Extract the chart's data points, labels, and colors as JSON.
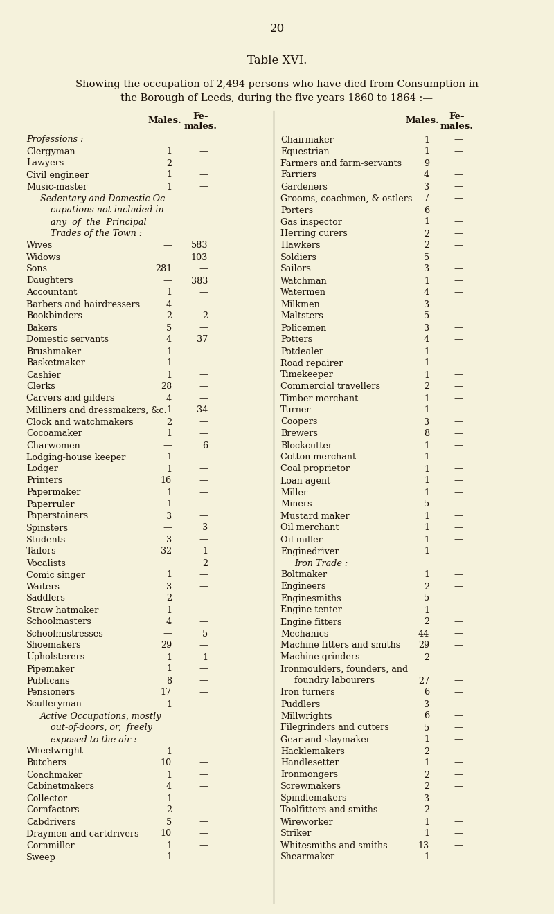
{
  "page_number": "20",
  "title": "Table XVI.",
  "subtitle_line1": "Showing the occupation of 2,494 persons who have died from Consumption in",
  "subtitle_line2": "the Borough of Leeds, during the five years 1860 to 1864 :—",
  "bg_color": "#f5f2dc",
  "text_color": "#1a1008",
  "left_column": [
    {
      "label": "Professions :",
      "males": "",
      "females": "",
      "style": "italic",
      "dots": false
    },
    {
      "label": "Clergyman",
      "males": "1",
      "females": "—",
      "style": "normal",
      "dots": true
    },
    {
      "label": "Lawyers",
      "males": "2",
      "females": "—",
      "style": "normal",
      "dots": true
    },
    {
      "label": "Civil engineer",
      "males": "1",
      "females": "—",
      "style": "normal",
      "dots": true
    },
    {
      "label": "Music-master",
      "males": "1",
      "females": "—",
      "style": "normal",
      "dots": true
    },
    {
      "label": "Sedentary and Domestic Oc-",
      "males": "",
      "females": "",
      "style": "italic",
      "dots": false,
      "indent": 20
    },
    {
      "label": "cupations not included in",
      "males": "",
      "females": "",
      "style": "italic",
      "dots": false,
      "indent": 35
    },
    {
      "label": "any  of  the  Principal",
      "males": "",
      "females": "",
      "style": "italic",
      "dots": false,
      "indent": 35
    },
    {
      "label": "Trades of the Town :",
      "males": "",
      "females": "",
      "style": "italic",
      "dots": false,
      "indent": 35
    },
    {
      "label": "Wives",
      "males": "—",
      "females": "583",
      "style": "normal",
      "dots": true
    },
    {
      "label": "Widows",
      "males": "—",
      "females": "103",
      "style": "normal",
      "dots": true
    },
    {
      "label": "Sons",
      "males": "281",
      "females": "—",
      "style": "normal",
      "dots": true
    },
    {
      "label": "Daughters",
      "males": "—",
      "females": "383",
      "style": "normal",
      "dots": true
    },
    {
      "label": "Accountant",
      "males": "1",
      "females": "—",
      "style": "normal",
      "dots": true
    },
    {
      "label": "Barbers and hairdressers",
      "males": "4",
      "females": "—",
      "style": "normal",
      "dots": false
    },
    {
      "label": "Bookbinders",
      "males": "2",
      "females": "2",
      "style": "normal",
      "dots": true
    },
    {
      "label": "Bakers",
      "males": "5",
      "females": "—",
      "style": "normal",
      "dots": true
    },
    {
      "label": "Domestic servants",
      "males": "4",
      "females": "37",
      "style": "normal",
      "dots": true
    },
    {
      "label": "Brushmaker",
      "males": "1",
      "females": "—",
      "style": "normal",
      "dots": true
    },
    {
      "label": "Basketmaker",
      "males": "1",
      "females": "—",
      "style": "normal",
      "dots": true
    },
    {
      "label": "Cashier",
      "males": "1",
      "females": "—",
      "style": "normal",
      "dots": true
    },
    {
      "label": "Clerks",
      "males": "28",
      "females": "—",
      "style": "normal",
      "dots": true
    },
    {
      "label": "Carvers and gilders",
      "males": "4",
      "females": "—",
      "style": "normal",
      "dots": true
    },
    {
      "label": "Milliners and dressmakers, &c.",
      "males": "1",
      "females": "34",
      "style": "normal",
      "dots": false
    },
    {
      "label": "Clock and watchmakers",
      "males": "2",
      "females": "—",
      "style": "normal",
      "dots": true
    },
    {
      "label": "Cocoamaker",
      "males": "1",
      "females": "—",
      "style": "normal",
      "dots": true
    },
    {
      "label": "Charwomen",
      "males": "—",
      "females": "6",
      "style": "normal",
      "dots": true
    },
    {
      "label": "Lodging-house keeper",
      "males": "1",
      "females": "—",
      "style": "normal",
      "dots": true
    },
    {
      "label": "Lodger",
      "males": "1",
      "females": "—",
      "style": "normal",
      "dots": true
    },
    {
      "label": "Printers",
      "males": "16",
      "females": "—",
      "style": "normal",
      "dots": true
    },
    {
      "label": "Papermaker",
      "males": "1",
      "females": "—",
      "style": "normal",
      "dots": true
    },
    {
      "label": "Paperruler",
      "males": "1",
      "females": "—",
      "style": "normal",
      "dots": true
    },
    {
      "label": "Paperstainers",
      "males": "3",
      "females": "—",
      "style": "normal",
      "dots": true
    },
    {
      "label": "Spinsters",
      "males": "—",
      "females": "3",
      "style": "normal",
      "dots": true
    },
    {
      "label": "Students",
      "males": "3",
      "females": "—",
      "style": "normal",
      "dots": true
    },
    {
      "label": "Tailors",
      "males": "32",
      "females": "1",
      "style": "normal",
      "dots": true
    },
    {
      "label": "Vocalists",
      "males": "—",
      "females": "2",
      "style": "normal",
      "dots": true
    },
    {
      "label": "Comic singer",
      "males": "1",
      "females": "—",
      "style": "normal",
      "dots": true
    },
    {
      "label": "Waiters",
      "males": "3",
      "females": "—",
      "style": "normal",
      "dots": true
    },
    {
      "label": "Saddlers",
      "males": "2",
      "females": "—",
      "style": "normal",
      "dots": true
    },
    {
      "label": "Straw hatmaker",
      "males": "1",
      "females": "—",
      "style": "normal",
      "dots": true
    },
    {
      "label": "Schoolmasters",
      "males": "4",
      "females": "—",
      "style": "normal",
      "dots": true
    },
    {
      "label": "Schoolmistresses",
      "males": "—",
      "females": "5",
      "style": "normal",
      "dots": true
    },
    {
      "label": "Shoemakers",
      "males": "29",
      "females": "—",
      "style": "normal",
      "dots": true
    },
    {
      "label": "Upholsterers",
      "males": "1",
      "females": "1",
      "style": "normal",
      "dots": true
    },
    {
      "label": "Pipemaker",
      "males": "1",
      "females": "—",
      "style": "normal",
      "dots": true
    },
    {
      "label": "Publicans",
      "males": "8",
      "females": "—",
      "style": "normal",
      "dots": true
    },
    {
      "label": "Pensioners",
      "males": "17",
      "females": "—",
      "style": "normal",
      "dots": true
    },
    {
      "label": "Sculleryman",
      "males": "1",
      "females": "—",
      "style": "normal",
      "dots": true
    },
    {
      "label": "Active Occupations, mostly",
      "males": "",
      "females": "",
      "style": "italic",
      "dots": false,
      "indent": 20
    },
    {
      "label": "out-of-doors, or,  freely",
      "males": "",
      "females": "",
      "style": "italic",
      "dots": false,
      "indent": 35
    },
    {
      "label": "exposed to the air :",
      "males": "",
      "females": "",
      "style": "italic",
      "dots": false,
      "indent": 35
    },
    {
      "label": "Wheelwright",
      "males": "1",
      "females": "—",
      "style": "normal",
      "dots": true
    },
    {
      "label": "Butchers",
      "males": "10",
      "females": "—",
      "style": "normal",
      "dots": true
    },
    {
      "label": "Coachmaker",
      "males": "1",
      "females": "—",
      "style": "normal",
      "dots": true
    },
    {
      "label": "Cabinetmakers",
      "males": "4",
      "females": "—",
      "style": "normal",
      "dots": true
    },
    {
      "label": "Collector",
      "males": "1",
      "females": "—",
      "style": "normal",
      "dots": true
    },
    {
      "label": "Cornfactors",
      "males": "2",
      "females": "—",
      "style": "normal",
      "dots": true
    },
    {
      "label": "Cabdrivers",
      "males": "5",
      "females": "—",
      "style": "normal",
      "dots": true
    },
    {
      "label": "Draymen and cartdrivers",
      "males": "10",
      "females": "—",
      "style": "normal",
      "dots": false
    },
    {
      "label": "Cornmiller",
      "males": "1",
      "females": "—",
      "style": "normal",
      "dots": true
    },
    {
      "label": "Sweep",
      "males": "1",
      "females": "—",
      "style": "normal",
      "dots": true
    }
  ],
  "right_column": [
    {
      "label": "Chairmaker",
      "males": "1",
      "females": "—",
      "style": "normal",
      "dots": true
    },
    {
      "label": "Equestrian",
      "males": "1",
      "females": "—",
      "style": "normal",
      "dots": true
    },
    {
      "label": "Farmers and farm-servants",
      "males": "9",
      "females": "—",
      "style": "normal",
      "dots": false
    },
    {
      "label": "Farriers",
      "males": "4",
      "females": "—",
      "style": "normal",
      "dots": true
    },
    {
      "label": "Gardeners",
      "males": "3",
      "females": "—",
      "style": "normal",
      "dots": true
    },
    {
      "label": "Grooms, coachmen, & ostlers",
      "males": "7",
      "females": "—",
      "style": "normal",
      "dots": false
    },
    {
      "label": "Porters",
      "males": "6",
      "females": "—",
      "style": "normal",
      "dots": true
    },
    {
      "label": "Gas inspector",
      "males": "1",
      "females": "—",
      "style": "normal",
      "dots": true
    },
    {
      "label": "Herring curers",
      "males": "2",
      "females": "—",
      "style": "normal",
      "dots": true
    },
    {
      "label": "Hawkers",
      "males": "2",
      "females": "—",
      "style": "normal",
      "dots": true
    },
    {
      "label": "Soldiers",
      "males": "5",
      "females": "—",
      "style": "normal",
      "dots": true
    },
    {
      "label": "Sailors",
      "males": "3",
      "females": "—",
      "style": "normal",
      "dots": true
    },
    {
      "label": "Watchman",
      "males": "1",
      "females": "—",
      "style": "normal",
      "dots": true
    },
    {
      "label": "Watermen",
      "males": "4",
      "females": "—",
      "style": "normal",
      "dots": true
    },
    {
      "label": "Milkmen",
      "males": "3",
      "females": "—",
      "style": "normal",
      "dots": true
    },
    {
      "label": "Maltsters",
      "males": "5",
      "females": "—",
      "style": "normal",
      "dots": true
    },
    {
      "label": "Policemen",
      "males": "3",
      "females": "—",
      "style": "normal",
      "dots": true
    },
    {
      "label": "Potters",
      "males": "4",
      "females": "—",
      "style": "normal",
      "dots": true
    },
    {
      "label": "Potdealer",
      "males": "1",
      "females": "—",
      "style": "normal",
      "dots": true
    },
    {
      "label": "Road repairer",
      "males": "1",
      "females": "—",
      "style": "normal",
      "dots": true
    },
    {
      "label": "Timekeeper",
      "males": "1",
      "females": "—",
      "style": "normal",
      "dots": true
    },
    {
      "label": "Commercial travellers",
      "males": "2",
      "females": "—",
      "style": "normal",
      "dots": true
    },
    {
      "label": "Timber merchant",
      "males": "1",
      "females": "—",
      "style": "normal",
      "dots": true
    },
    {
      "label": "Turner",
      "males": "1",
      "females": "—",
      "style": "normal",
      "dots": true
    },
    {
      "label": "Coopers",
      "males": "3",
      "females": "—",
      "style": "normal",
      "dots": true
    },
    {
      "label": "Brewers",
      "males": "8",
      "females": "—",
      "style": "normal",
      "dots": true
    },
    {
      "label": "Blockcutter",
      "males": "1",
      "females": "—",
      "style": "normal",
      "dots": true
    },
    {
      "label": "Cotton merchant",
      "males": "1",
      "females": "—",
      "style": "normal",
      "dots": true
    },
    {
      "label": "Coal proprietor",
      "males": "1",
      "females": "—",
      "style": "normal",
      "dots": true
    },
    {
      "label": "Loan agent",
      "males": "1",
      "females": "—",
      "style": "normal",
      "dots": true
    },
    {
      "label": "Miller",
      "males": "1",
      "females": "—",
      "style": "normal",
      "dots": true
    },
    {
      "label": "Miners",
      "males": "5",
      "females": "—",
      "style": "normal",
      "dots": true
    },
    {
      "label": "Mustard maker",
      "males": "1",
      "females": "—",
      "style": "normal",
      "dots": true
    },
    {
      "label": "Oil merchant",
      "males": "1",
      "females": "—",
      "style": "normal",
      "dots": true
    },
    {
      "label": "Oil miller",
      "males": "1",
      "females": "—",
      "style": "normal",
      "dots": true
    },
    {
      "label": "Enginedriver",
      "males": "1",
      "females": "—",
      "style": "normal",
      "dots": true
    },
    {
      "label": "Iron Trade :",
      "males": "",
      "females": "",
      "style": "italic",
      "dots": false,
      "indent": 20
    },
    {
      "label": "Boltmaker",
      "males": "1",
      "females": "—",
      "style": "normal",
      "dots": true
    },
    {
      "label": "Engineers",
      "males": "2",
      "females": "—",
      "style": "normal",
      "dots": true
    },
    {
      "label": "Enginesmiths",
      "males": "5",
      "females": "—",
      "style": "normal",
      "dots": true
    },
    {
      "label": "Engine tenter",
      "males": "1",
      "females": "—",
      "style": "normal",
      "dots": true
    },
    {
      "label": "Engine fitters",
      "males": "2",
      "females": "—",
      "style": "normal",
      "dots": true
    },
    {
      "label": "Mechanics",
      "males": "44",
      "females": "—",
      "style": "normal",
      "dots": true
    },
    {
      "label": "Machine fitters and smiths",
      "males": "29",
      "females": "—",
      "style": "normal",
      "dots": false
    },
    {
      "label": "Machine grinders",
      "males": "2",
      "females": "—",
      "style": "normal",
      "dots": true
    },
    {
      "label": "Ironmoulders, founders, and",
      "males": "",
      "females": "",
      "style": "normal",
      "dots": false
    },
    {
      "label": "foundry labourers",
      "males": "27",
      "females": "—",
      "style": "normal",
      "dots": true,
      "indent": 20
    },
    {
      "label": "Iron turners",
      "males": "6",
      "females": "—",
      "style": "normal",
      "dots": true
    },
    {
      "label": "Puddlers",
      "males": "3",
      "females": "—",
      "style": "normal",
      "dots": true
    },
    {
      "label": "Millwrights",
      "males": "6",
      "females": "—",
      "style": "normal",
      "dots": true
    },
    {
      "label": "Filegrinders and cutters",
      "males": "5",
      "females": "—",
      "style": "normal",
      "dots": true
    },
    {
      "label": "Gear and slaymaker",
      "males": "1",
      "females": "—",
      "style": "normal",
      "dots": true
    },
    {
      "label": "Hacklemakers",
      "males": "2",
      "females": "—",
      "style": "normal",
      "dots": true
    },
    {
      "label": "Handlesetter",
      "males": "1",
      "females": "—",
      "style": "normal",
      "dots": true
    },
    {
      "label": "Ironmongers",
      "males": "2",
      "females": "—",
      "style": "normal",
      "dots": true
    },
    {
      "label": "Screwmakers",
      "males": "2",
      "females": "—",
      "style": "normal",
      "dots": true
    },
    {
      "label": "Spindlemakers",
      "males": "3",
      "females": "—",
      "style": "normal",
      "dots": true
    },
    {
      "label": "Toolfitters and smiths",
      "males": "2",
      "females": "—",
      "style": "normal",
      "dots": true
    },
    {
      "label": "Wireworker",
      "males": "1",
      "females": "—",
      "style": "normal",
      "dots": true
    },
    {
      "label": "Striker",
      "males": "1",
      "females": "—",
      "style": "normal",
      "dots": true
    },
    {
      "label": "Whitesmiths and smiths",
      "males": "13",
      "females": "—",
      "style": "normal",
      "dots": false
    },
    {
      "label": "Shearmaker",
      "males": "1",
      "females": "—",
      "style": "normal",
      "dots": true
    }
  ]
}
